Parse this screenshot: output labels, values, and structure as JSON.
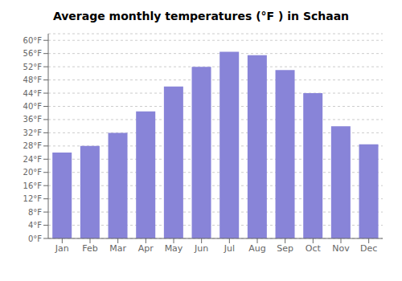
{
  "chart_data": {
    "type": "bar",
    "title": "Average monthly temperatures (°F ) in Schaan",
    "categories": [
      "Jan",
      "Feb",
      "Mar",
      "Apr",
      "May",
      "Jun",
      "Jul",
      "Aug",
      "Sep",
      "Oct",
      "Nov",
      "Dec"
    ],
    "values": [
      26,
      28,
      32,
      38.5,
      46,
      52,
      56.5,
      55.5,
      51,
      44,
      34,
      28.5
    ],
    "ylim": [
      0,
      62
    ],
    "yticks": [
      {
        "value": 0,
        "label": "0°F"
      },
      {
        "value": 4,
        "label": "4°F"
      },
      {
        "value": 8,
        "label": "8°F"
      },
      {
        "value": 12,
        "label": "12°F"
      },
      {
        "value": 16,
        "label": "16°F"
      },
      {
        "value": 20,
        "label": "20°F"
      },
      {
        "value": 24,
        "label": "24°F"
      },
      {
        "value": 28,
        "label": "28°F"
      },
      {
        "value": 32,
        "label": "32°F"
      },
      {
        "value": 36,
        "label": "36°F"
      },
      {
        "value": 40,
        "label": "40°F"
      },
      {
        "value": 44,
        "label": "44°F"
      },
      {
        "value": 48,
        "label": "48°F"
      },
      {
        "value": 52,
        "label": "52°F"
      },
      {
        "value": 56,
        "label": "56°F"
      },
      {
        "value": 60,
        "label": "60°F"
      }
    ],
    "grid": true
  }
}
